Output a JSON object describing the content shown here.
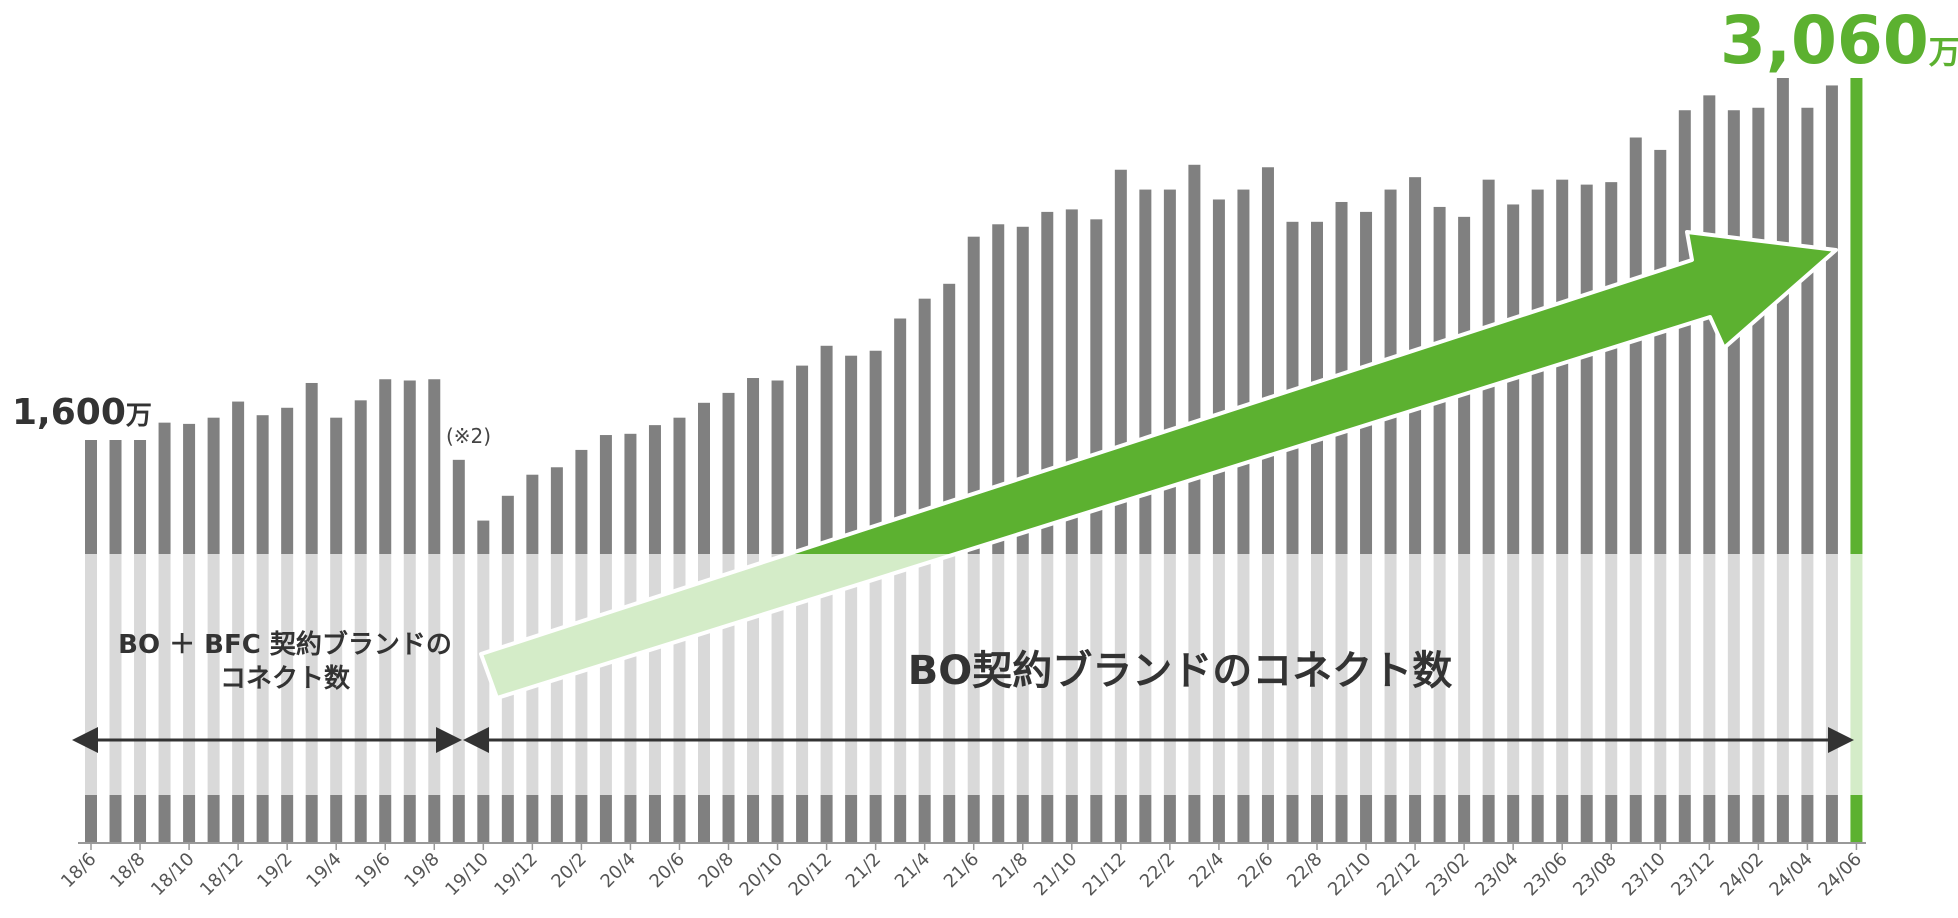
{
  "chart_data": {
    "type": "bar",
    "categories": [
      "18/6",
      "18/7",
      "18/8",
      "18/9",
      "18/10",
      "18/11",
      "18/12",
      "19/1",
      "19/2",
      "19/3",
      "19/4",
      "19/5",
      "19/6",
      "19/7",
      "19/8",
      "19/9",
      "19/10",
      "19/11",
      "19/12",
      "20/1",
      "20/2",
      "20/3",
      "20/4",
      "20/5",
      "20/6",
      "20/7",
      "20/8",
      "20/9",
      "20/10",
      "20/11",
      "20/12",
      "21/1",
      "21/2",
      "21/3",
      "21/4",
      "21/5",
      "21/6",
      "21/7",
      "21/8",
      "21/9",
      "21/10",
      "21/11",
      "21/12",
      "22/1",
      "22/2",
      "22/3",
      "22/4",
      "22/5",
      "22/6",
      "22/7",
      "22/8",
      "22/9",
      "22/10",
      "22/11",
      "22/12",
      "23/01",
      "23/02",
      "23/03",
      "23/04",
      "23/05",
      "23/06",
      "23/07",
      "23/08",
      "23/09",
      "23/10",
      "23/11",
      "23/12",
      "24/01",
      "24/02",
      "24/03",
      "24/04",
      "24/05",
      "24/06"
    ],
    "tick_labels": [
      "18/6",
      "18/8",
      "18/10",
      "18/12",
      "19/2",
      "19/4",
      "19/6",
      "19/8",
      "19/10",
      "19/12",
      "20/2",
      "20/4",
      "20/6",
      "20/8",
      "20/10",
      "20/12",
      "21/2",
      "21/4",
      "21/6",
      "21/8",
      "21/10",
      "21/12",
      "22/2",
      "22/4",
      "22/6",
      "22/8",
      "22/10",
      "22/12",
      "23/02",
      "23/04",
      "23/06",
      "23/08",
      "23/10",
      "23/12",
      "24/02",
      "24/04",
      "24/06"
    ],
    "values": [
      1600,
      1600,
      1600,
      1670,
      1665,
      1690,
      1755,
      1700,
      1730,
      1830,
      1690,
      1760,
      1845,
      1840,
      1845,
      1520,
      1275,
      1375,
      1460,
      1490,
      1560,
      1620,
      1625,
      1660,
      1690,
      1750,
      1790,
      1850,
      1840,
      1900,
      1980,
      1940,
      1960,
      2090,
      2170,
      2230,
      2420,
      2470,
      2460,
      2520,
      2530,
      2490,
      2690,
      2610,
      2610,
      2710,
      2570,
      2610,
      2700,
      2480,
      2480,
      2560,
      2520,
      2610,
      2660,
      2540,
      2500,
      2650,
      2550,
      2610,
      2650,
      2630,
      2640,
      2820,
      2770,
      2930,
      2990,
      2930,
      2940,
      3060,
      2940,
      3030,
      3060
    ],
    "highlight_index": 72,
    "colors": {
      "bar": "#808080",
      "highlight": "#5cb130",
      "band": "#d9d9d9",
      "band_highlight": "#d4ecc8",
      "arrow": "#5cb130",
      "arrow_light": "#d4ecc8",
      "axis_arrow": "#333333"
    },
    "start_label": {
      "value": "1,600",
      "unit": "万"
    },
    "end_label": {
      "value": "3,060",
      "unit": "万"
    },
    "footnote": "(※2)",
    "section_left": {
      "line1": "BO ＋ BFC 契約ブランドの",
      "line2": "コネクト数"
    },
    "section_right": "BO契約ブランドのコネクト数"
  }
}
